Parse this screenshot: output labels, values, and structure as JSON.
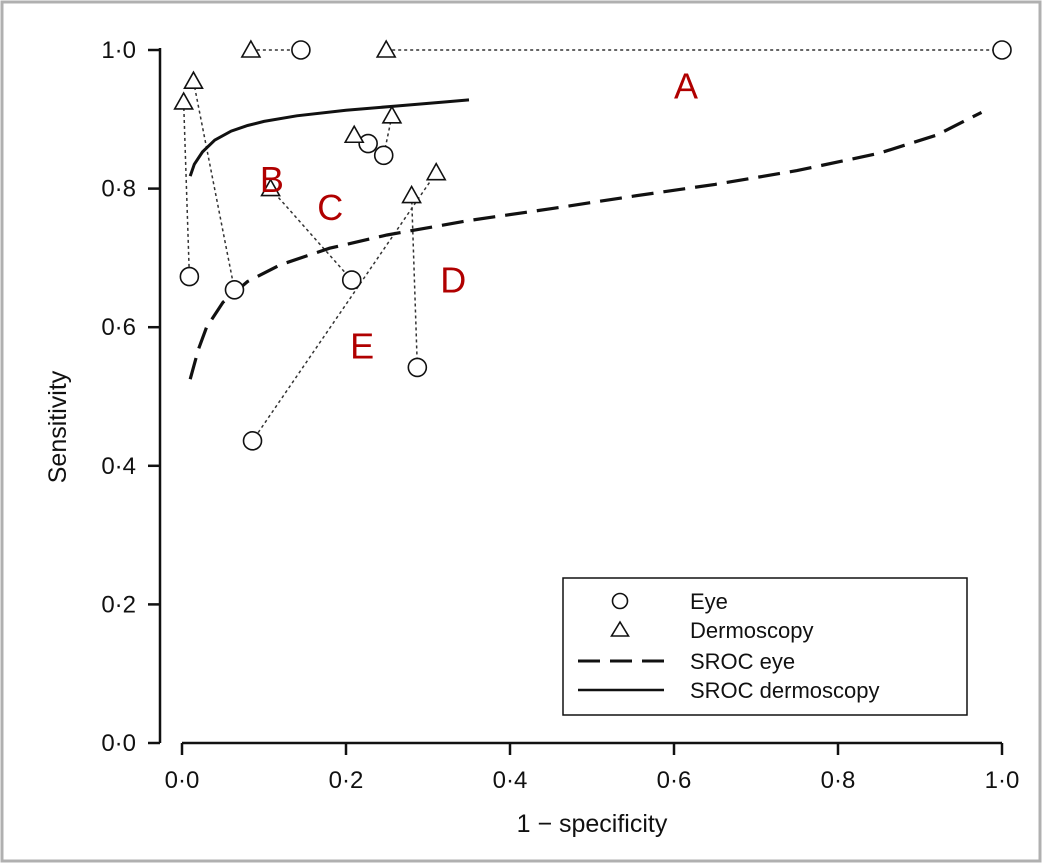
{
  "chart_data": {
    "type": "scatter",
    "title": "",
    "xlabel": "1 − specificity",
    "ylabel": "Sensitivity",
    "xlim": [
      0,
      1
    ],
    "ylim": [
      0,
      1
    ],
    "x_ticks": [
      0,
      0.2,
      0.4,
      0.6,
      0.8,
      1.0
    ],
    "x_tick_labels": [
      "0·0",
      "0·2",
      "0·4",
      "0·6",
      "0·8",
      "1·0"
    ],
    "y_ticks": [
      0,
      0.2,
      0.4,
      0.6,
      0.8,
      1.0
    ],
    "y_tick_labels": [
      "0·0",
      "0·2",
      "0·4",
      "0·6",
      "0·8",
      "1·0"
    ],
    "grid": false,
    "legend": {
      "placement": "bottom-right",
      "entries": [
        {
          "label": "Eye",
          "marker": "circle"
        },
        {
          "label": "Dermoscopy",
          "marker": "triangle"
        },
        {
          "label": "SROC eye",
          "line": "dashed"
        },
        {
          "label": "SROC dermoscopy",
          "line": "solid"
        }
      ]
    },
    "eye_points": [
      {
        "x": 0.145,
        "y": 1.0
      },
      {
        "x": 1.0,
        "y": 1.0
      },
      {
        "x": 0.227,
        "y": 0.865
      },
      {
        "x": 0.246,
        "y": 0.848
      },
      {
        "x": 0.009,
        "y": 0.673
      },
      {
        "x": 0.064,
        "y": 0.654
      },
      {
        "x": 0.207,
        "y": 0.668
      },
      {
        "x": 0.287,
        "y": 0.542
      },
      {
        "x": 0.086,
        "y": 0.436
      }
    ],
    "dermoscopy_points": [
      {
        "x": 0.084,
        "y": 1.0
      },
      {
        "x": 0.249,
        "y": 1.0
      },
      {
        "x": 0.002,
        "y": 0.925
      },
      {
        "x": 0.014,
        "y": 0.955
      },
      {
        "x": 0.21,
        "y": 0.877
      },
      {
        "x": 0.256,
        "y": 0.905
      },
      {
        "x": 0.108,
        "y": 0.8
      },
      {
        "x": 0.28,
        "y": 0.79
      },
      {
        "x": 0.31,
        "y": 0.823
      }
    ],
    "paired_links": [
      [
        {
          "x": 0.084,
          "y": 1.0
        },
        {
          "x": 0.145,
          "y": 1.0
        }
      ],
      [
        {
          "x": 0.249,
          "y": 1.0
        },
        {
          "x": 1.0,
          "y": 1.0
        }
      ],
      [
        {
          "x": 0.21,
          "y": 0.877
        },
        {
          "x": 0.227,
          "y": 0.865
        }
      ],
      [
        {
          "x": 0.256,
          "y": 0.905
        },
        {
          "x": 0.246,
          "y": 0.848
        }
      ],
      [
        {
          "x": 0.002,
          "y": 0.925
        },
        {
          "x": 0.009,
          "y": 0.673
        }
      ],
      [
        {
          "x": 0.014,
          "y": 0.955
        },
        {
          "x": 0.064,
          "y": 0.654
        }
      ],
      [
        {
          "x": 0.108,
          "y": 0.8
        },
        {
          "x": 0.207,
          "y": 0.668
        }
      ],
      [
        {
          "x": 0.28,
          "y": 0.79
        },
        {
          "x": 0.287,
          "y": 0.542
        }
      ],
      [
        {
          "x": 0.31,
          "y": 0.823
        },
        {
          "x": 0.086,
          "y": 0.436
        }
      ]
    ],
    "sroc_eye": {
      "x": [
        0.01,
        0.02,
        0.03,
        0.05,
        0.08,
        0.12,
        0.18,
        0.25,
        0.35,
        0.45,
        0.55,
        0.65,
        0.75,
        0.85,
        0.92,
        0.975
      ],
      "y": [
        0.525,
        0.568,
        0.6,
        0.636,
        0.666,
        0.69,
        0.714,
        0.733,
        0.754,
        0.771,
        0.789,
        0.806,
        0.826,
        0.851,
        0.877,
        0.91
      ]
    },
    "sroc_dermoscopy": {
      "x": [
        0.01,
        0.015,
        0.025,
        0.04,
        0.06,
        0.08,
        0.1,
        0.14,
        0.2,
        0.26,
        0.32,
        0.35
      ],
      "y": [
        0.818,
        0.835,
        0.853,
        0.87,
        0.883,
        0.891,
        0.897,
        0.905,
        0.913,
        0.919,
        0.925,
        0.928
      ]
    },
    "annotations": [
      {
        "text": "A",
        "x": 0.6,
        "y": 0.93
      },
      {
        "text": "B",
        "x": 0.095,
        "y": 0.795
      },
      {
        "text": "C",
        "x": 0.165,
        "y": 0.755
      },
      {
        "text": "D",
        "x": 0.315,
        "y": 0.65
      },
      {
        "text": "E",
        "x": 0.205,
        "y": 0.555
      }
    ],
    "annotation_color": "#b00000"
  }
}
